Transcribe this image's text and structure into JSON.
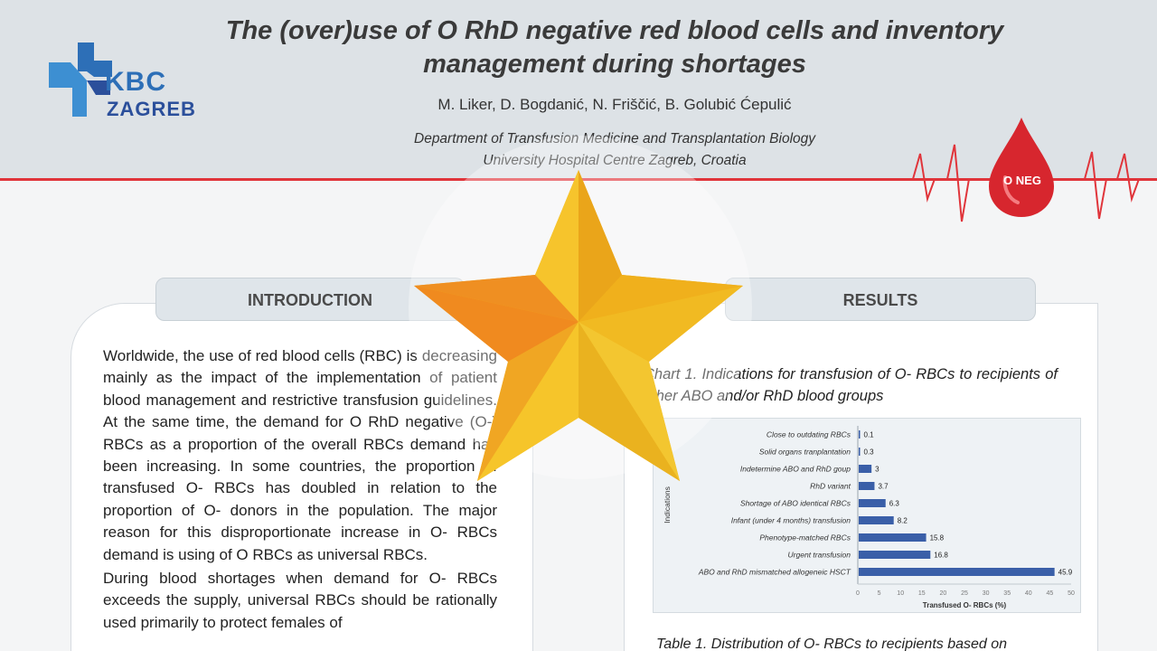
{
  "header": {
    "title": "The (over)use of O RhD negative red blood cells and inventory management during shortages",
    "authors": "M. Liker, D. Bogdanić, N. Friščić, B. Golubić Ćepulić",
    "affiliation_line1": "Department of Transfusion Medicine and Transplantation Biology",
    "affiliation_line2": "University Hospital Centre Zagreb, Croatia",
    "logo_line1": "KBC",
    "logo_line2": "ZAGREB",
    "drop_label": "O NEG"
  },
  "sections": {
    "introduction": "INTRODUCTION",
    "results": "RESULTS"
  },
  "introduction": {
    "paragraphs": [
      "Worldwide, the use of red blood cells (RBC) is decreasing mainly as the impact of the implementation of patient blood management and restrictive transfusion guidelines. At the same time, the demand for O RhD negative (O-) RBCs as a proportion of the overall RBCs demand has been increasing. In some countries, the proportion of transfused O- RBCs has doubled in relation to the proportion of O- donors in the population. The major reason for this disproportionate increase in O- RBCs demand is using of O RBCs as universal RBCs.",
      "During blood shortages when demand for O- RBCs exceeds the supply, universal RBCs should be rationally used primarily to protect females of"
    ]
  },
  "results": {
    "chart_caption": "Chart 1. Indications for transfusion of O- RBCs to recipients of other ABO and/or RhD blood groups",
    "table_caption": "Table 1. Distribution of O- RBCs to recipients based on"
  },
  "chart_data": {
    "type": "bar",
    "orientation": "horizontal",
    "categories": [
      "Close to outdating RBCs",
      "Solid organs tranplantation",
      "Indetermine ABO and RhD goup",
      "RhD variant",
      "Shortage of ABO identical RBCs",
      "Infant (under 4 months) transfusion",
      "Phenotype-matched  RBCs",
      "Urgent transfusion",
      "ABO and RhD mismatched allogeneic HSCT"
    ],
    "values": [
      0.1,
      0.3,
      3,
      3.7,
      6.3,
      8.2,
      15.8,
      16.8,
      45.9
    ],
    "xlabel": "Transfused O- RBCs (%)",
    "ylabel": "Indications",
    "xlim": [
      0,
      50
    ],
    "xticks": [
      0,
      5,
      10,
      15,
      20,
      25,
      30,
      35,
      40,
      45,
      50
    ],
    "bar_color": "#3a5fa8",
    "grid": false
  },
  "colors": {
    "header_bg": "#dde2e6",
    "accent_red": "#e0353b",
    "logo_blue": "#2d6fb7",
    "star_gold": "#f3b51d"
  }
}
